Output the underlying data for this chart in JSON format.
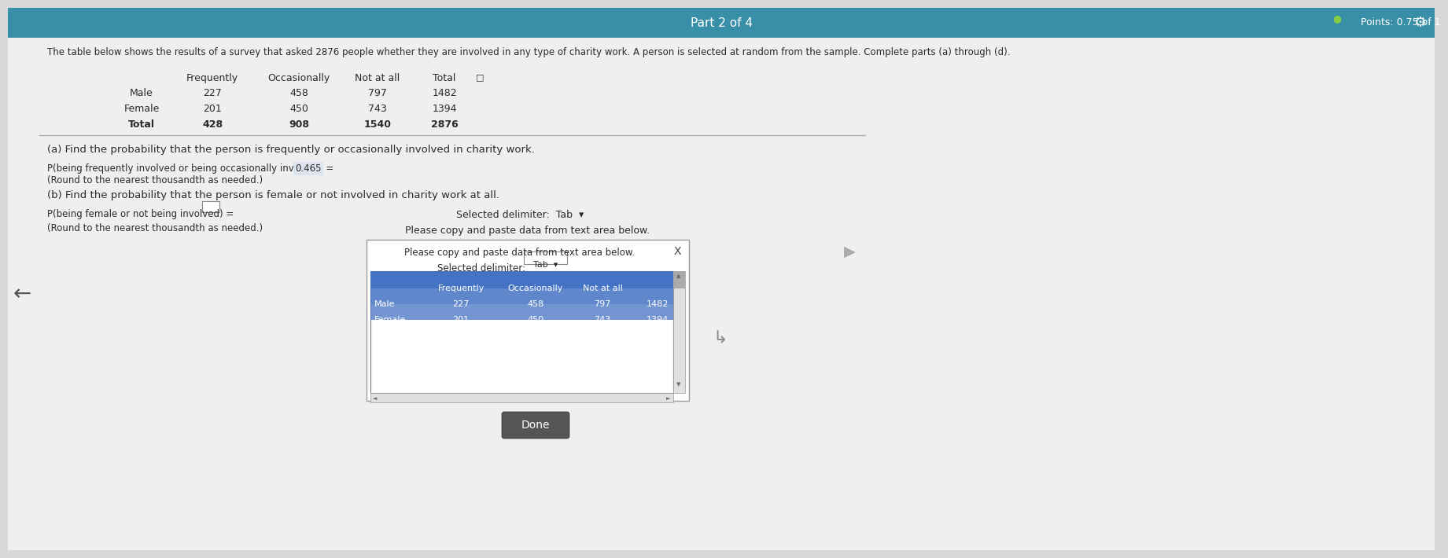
{
  "bg_color": "#d8d8d8",
  "top_bar_color": "#3a8fa8",
  "top_bar_text": "Part 2 of 4",
  "points_text": "Points: 0.75 of 1",
  "main_text": "The table below shows the results of a survey that asked 2876 people whether they are involved in any type of charity work. A person is selected at random from the sample. Complete parts (a) through (d).",
  "table_headers": [
    "Frequently",
    "Occasionally",
    "Not at all",
    "Total"
  ],
  "table_rows": [
    [
      "Male",
      "227",
      "458",
      "797",
      "1482"
    ],
    [
      "Female",
      "201",
      "450",
      "743",
      "1394"
    ],
    [
      "Total",
      "428",
      "908",
      "1540",
      "2876"
    ]
  ],
  "part_a_question": "(a) Find the probability that the person is frequently or occasionally involved in charity work.",
  "part_a_prob_prefix": "P(being frequently involved or being occasionally involved) = ",
  "part_a_answer": "0.465",
  "part_a_round_text": "(Round to the nearest thousandth as needed.)",
  "part_b_question": "(b) Find the probability that the person is female or not involved in charity work at all.",
  "part_b_prob_text": "P(being female or not being involved) =",
  "part_b_round_text": "(Round to the nearest thousandth as needed.)",
  "popup_title": "Please copy and paste data from text area below.",
  "popup_delimiter": "Selected delimiter:",
  "popup_tab": "Tab",
  "popup_done": "Done",
  "popup_col_headers": [
    "Frequently",
    "Occasionally",
    "Not at all"
  ],
  "popup_rows": [
    [
      "Male",
      "227",
      "458",
      "797",
      "1482"
    ],
    [
      "Female",
      "201",
      "450",
      "743",
      "1394"
    ]
  ],
  "content_bg": "#efefef",
  "popup_bg": "#ffffff",
  "popup_header_bg": "#4472c4",
  "popup_row1_bg": "#6699cc",
  "popup_row2_bg": "#5588bb",
  "text_color": "#2a2a2a",
  "light_text": "#444444",
  "answer_underline": "#4472c4"
}
